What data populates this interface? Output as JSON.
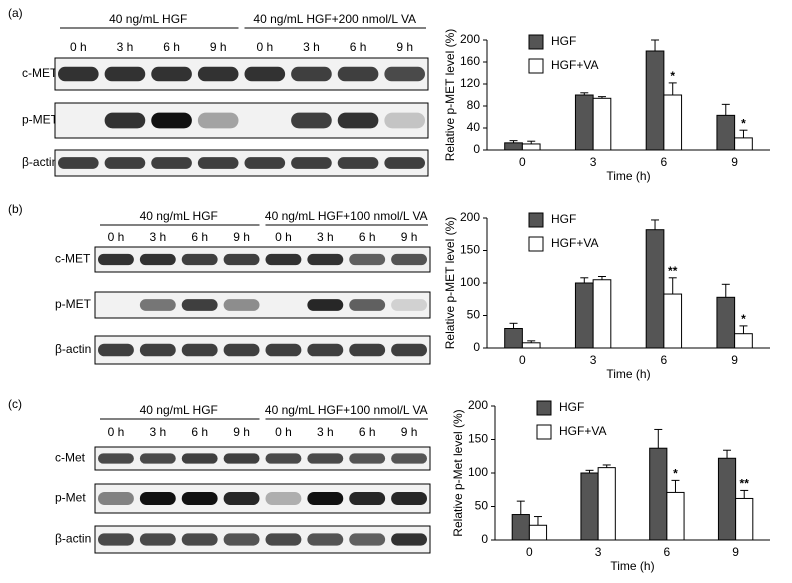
{
  "blots": [
    {
      "label": "(a)",
      "groups": [
        "40 ng/mL HGF",
        "40 ng/mL HGF+200 nmol/L VA"
      ],
      "lanes": [
        "0 h",
        "3 h",
        "6 h",
        "9 h",
        "0 h",
        "3 h",
        "6 h",
        "9 h"
      ],
      "rows": [
        "c-MET",
        "p-MET",
        "β-actin"
      ]
    },
    {
      "label": "(b)",
      "groups": [
        "40 ng/mL HGF",
        "40 ng/mL HGF+100 nmol/L VA"
      ],
      "lanes": [
        "0 h",
        "3 h",
        "6 h",
        "9 h",
        "0 h",
        "3 h",
        "6 h",
        "9 h"
      ],
      "rows": [
        "c-MET",
        "p-MET",
        "β-actin"
      ]
    },
    {
      "label": "(c)",
      "groups": [
        "40 ng/mL HGF",
        "40 ng/mL HGF+100 nmol/L VA"
      ],
      "lanes": [
        "0 h",
        "3 h",
        "6 h",
        "9 h",
        "0 h",
        "3 h",
        "6 h",
        "9 h"
      ],
      "rows": [
        "c-Met",
        "p-Met",
        "β-actin"
      ]
    }
  ],
  "chart_data": [
    {
      "type": "bar",
      "y_label": "Relative p-MET level (%)",
      "x_label": "Time (h)",
      "categories": [
        "0",
        "3",
        "6",
        "9"
      ],
      "series": [
        {
          "name": "HGF",
          "color": "#555555",
          "values": [
            13,
            100,
            180,
            63
          ],
          "errors": [
            4,
            4,
            20,
            20
          ],
          "significance": [
            null,
            null,
            null,
            null
          ]
        },
        {
          "name": "HGF+VA",
          "color": "#ffffff",
          "values": [
            11,
            94,
            100,
            22
          ],
          "errors": [
            5,
            3,
            22,
            14
          ],
          "significance": [
            null,
            null,
            "*",
            "*"
          ]
        }
      ],
      "ylim": [
        0,
        200
      ],
      "yticks": [
        0,
        40,
        80,
        120,
        160,
        200
      ]
    },
    {
      "type": "bar",
      "y_label": "Relative p-MET level (%)",
      "x_label": "Time (h)",
      "categories": [
        "0",
        "3",
        "6",
        "9"
      ],
      "series": [
        {
          "name": "HGF",
          "color": "#555555",
          "values": [
            30,
            100,
            182,
            78
          ],
          "errors": [
            8,
            8,
            15,
            20
          ],
          "significance": [
            null,
            null,
            null,
            null
          ]
        },
        {
          "name": "HGF+VA",
          "color": "#ffffff",
          "values": [
            8,
            105,
            83,
            22
          ],
          "errors": [
            3,
            5,
            25,
            12
          ],
          "significance": [
            null,
            null,
            "**",
            "*"
          ]
        }
      ],
      "ylim": [
        0,
        200
      ],
      "yticks": [
        0,
        50,
        100,
        150,
        200
      ]
    },
    {
      "type": "bar",
      "y_label": "Relative p-Met level (%)",
      "x_label": "Time (h)",
      "categories": [
        "0",
        "3",
        "6",
        "9"
      ],
      "series": [
        {
          "name": "HGF",
          "color": "#555555",
          "values": [
            38,
            100,
            137,
            122
          ],
          "errors": [
            20,
            4,
            28,
            12
          ],
          "significance": [
            null,
            null,
            null,
            null
          ]
        },
        {
          "name": "HGF+VA",
          "color": "#ffffff",
          "values": [
            22,
            108,
            71,
            62
          ],
          "errors": [
            13,
            4,
            18,
            12
          ],
          "significance": [
            null,
            null,
            "*",
            "**"
          ]
        }
      ],
      "ylim": [
        0,
        200
      ],
      "yticks": [
        0,
        50,
        100,
        150,
        200
      ]
    }
  ]
}
